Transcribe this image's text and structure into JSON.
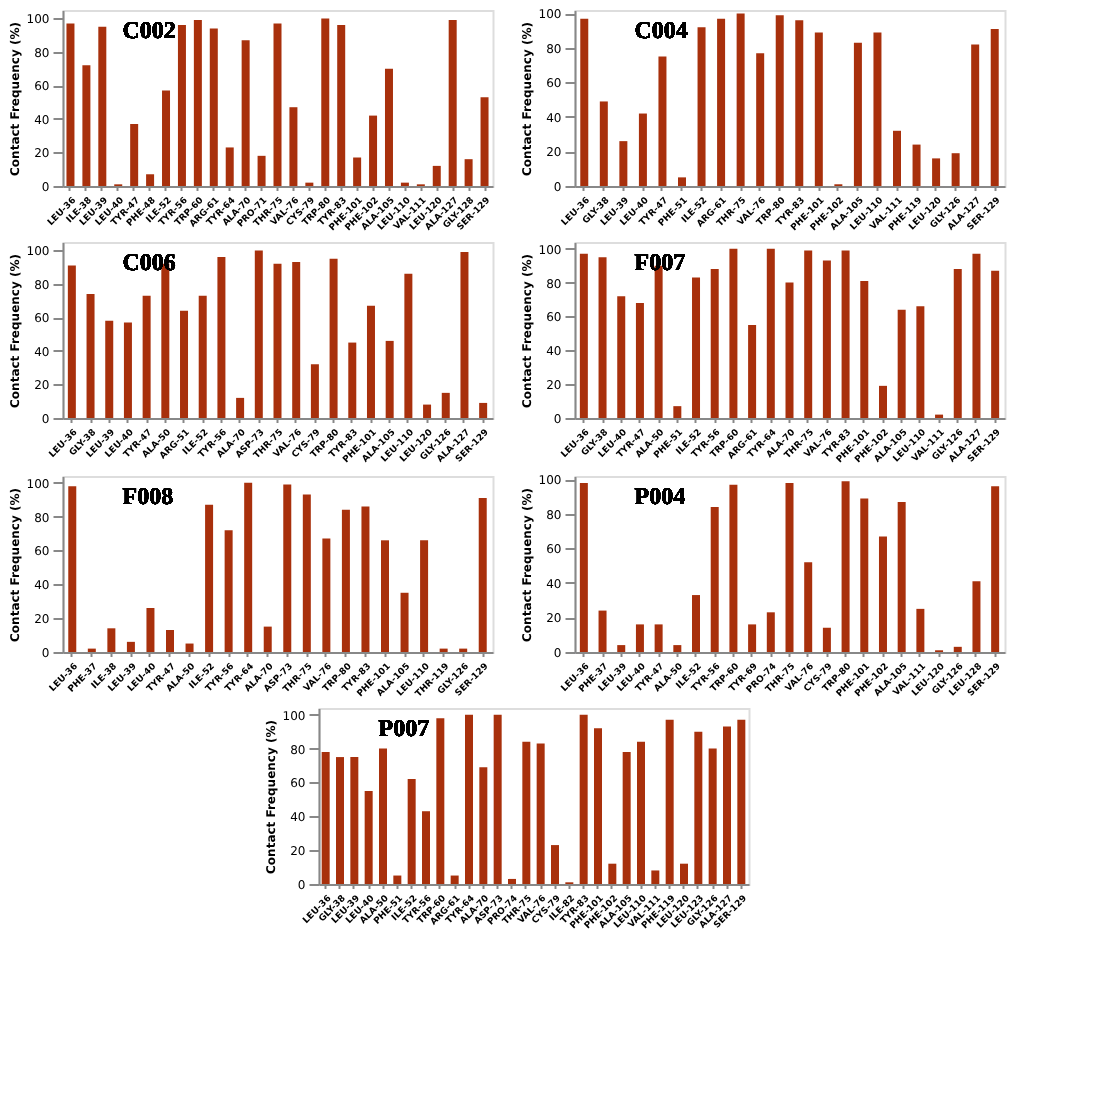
{
  "chart_data": [
    {
      "type": "bar",
      "title": "C002",
      "ylabel": "Contact Frequency (%)",
      "ylim": [
        0,
        105
      ],
      "yticks": [
        0,
        20,
        40,
        60,
        80,
        100
      ],
      "grid": false,
      "color": "#a8300c",
      "categories": [
        "LEU-36",
        "ILE-38",
        "LEU-39",
        "LEU-40",
        "TYR-47",
        "PHE-48",
        "ILE-52",
        "TYR-56",
        "TRP-60",
        "ARG-61",
        "TYR-64",
        "ALA-70",
        "PRO-71",
        "THR-75",
        "VAL-76",
        "CYS-79",
        "TRP-80",
        "TYR-83",
        "PHE-101",
        "PHE-102",
        "ALA-105",
        "LEU-110",
        "VAL-111",
        "LEU-120",
        "ALA-127",
        "GLY-128",
        "SER-129"
      ],
      "values": [
        97,
        72,
        95,
        1,
        37,
        7,
        57,
        96,
        99,
        94,
        23,
        87,
        18,
        97,
        47,
        2,
        100,
        96,
        17,
        42,
        70,
        2,
        1,
        12,
        99,
        16,
        53
      ]
    },
    {
      "type": "bar",
      "title": "C004",
      "ylabel": "Contact Frequency (%)",
      "ylim": [
        0,
        102
      ],
      "yticks": [
        0,
        20,
        40,
        60,
        80,
        100
      ],
      "grid": false,
      "color": "#a8300c",
      "categories": [
        "LEU-36",
        "GLY-38",
        "LEU-39",
        "LEU-40",
        "TYR-47",
        "PHE-51",
        "ILE-52",
        "ARG-61",
        "THR-75",
        "VAL-76",
        "TRP-80",
        "TYR-83",
        "PHE-101",
        "PHE-102",
        "ALA-105",
        "LEU-110",
        "VAL-111",
        "PHE-119",
        "LEU-120",
        "GLY-126",
        "ALA-127",
        "SER-129"
      ],
      "values": [
        97,
        49,
        26,
        42,
        75,
        5,
        92,
        97,
        100,
        77,
        99,
        96,
        89,
        1,
        83,
        89,
        32,
        24,
        16,
        19,
        82,
        91
      ]
    },
    {
      "type": "bar",
      "title": "C006",
      "ylabel": "Contact Frequency (%)",
      "ylim": [
        0,
        105
      ],
      "yticks": [
        0,
        20,
        40,
        60,
        80,
        100
      ],
      "grid": false,
      "color": "#a8300c",
      "categories": [
        "LEU-36",
        "GLY-38",
        "LEU-39",
        "LEU-40",
        "TYR-47",
        "ALA-50",
        "ARG-51",
        "ILE-52",
        "TYR-56",
        "ALA-70",
        "ASP-73",
        "THR-75",
        "VAL-76",
        "CYS-79",
        "TRP-80",
        "TYR-83",
        "PHE-101",
        "ALA-105",
        "LEU-110",
        "LEU-120",
        "GLY-126",
        "ALA-127",
        "SER-129"
      ],
      "values": [
        91,
        74,
        58,
        57,
        73,
        92,
        64,
        73,
        96,
        12,
        100,
        92,
        93,
        32,
        95,
        45,
        67,
        46,
        86,
        8,
        15,
        99,
        9
      ]
    },
    {
      "type": "bar",
      "title": "F007",
      "ylabel": "Contact Frequency (%)",
      "ylim": [
        0,
        104
      ],
      "yticks": [
        0,
        20,
        40,
        60,
        80,
        100
      ],
      "grid": false,
      "color": "#a8300c",
      "categories": [
        "LEU-36",
        "GLY-38",
        "LEU-40",
        "TYR-47",
        "ALA-50",
        "PHE-51",
        "ILE-52",
        "TYR-56",
        "TRP-60",
        "ARG-61",
        "TYR-64",
        "ALA-70",
        "THR-75",
        "VAL-76",
        "TYR-83",
        "PHE-101",
        "PHE-102",
        "ALA-105",
        "LEU-110",
        "VAL-111",
        "GLY-126",
        "ALA-127",
        "SER-129"
      ],
      "values": [
        97,
        95,
        72,
        68,
        90,
        7,
        83,
        88,
        100,
        55,
        100,
        80,
        99,
        93,
        99,
        81,
        19,
        64,
        66,
        2,
        88,
        97,
        87
      ]
    },
    {
      "type": "bar",
      "title": "F008",
      "ylabel": "Contact Frequency (%)",
      "ylim": [
        0,
        104
      ],
      "yticks": [
        0,
        20,
        40,
        60,
        80,
        100
      ],
      "grid": false,
      "color": "#a8300c",
      "categories": [
        "LEU-36",
        "PHE-37",
        "ILE-38",
        "LEU-39",
        "LEU-40",
        "TYR-47",
        "ALA-50",
        "ILE-52",
        "TYR-56",
        "TYR-64",
        "ALA-70",
        "ASP-73",
        "THR-75",
        "VAL-76",
        "TRP-80",
        "TYR-83",
        "PHE-101",
        "ALA-105",
        "LEU-110",
        "THR-119",
        "GLY-126",
        "SER-129"
      ],
      "values": [
        98,
        2,
        14,
        6,
        26,
        13,
        5,
        87,
        72,
        100,
        15,
        99,
        93,
        67,
        84,
        86,
        66,
        35,
        66,
        2,
        2,
        91
      ]
    },
    {
      "type": "bar",
      "title": "P004",
      "ylabel": "Contact Frequency (%)",
      "ylim": [
        0,
        102
      ],
      "yticks": [
        0,
        20,
        40,
        60,
        80,
        100
      ],
      "grid": false,
      "color": "#a8300c",
      "categories": [
        "LEU-36",
        "PHE-37",
        "LEU-39",
        "LEU-40",
        "TYR-47",
        "ALA-50",
        "ILE-52",
        "TYR-56",
        "TRP-60",
        "TYR-69",
        "PRO-74",
        "THR-75",
        "VAL-76",
        "CYS-79",
        "TRP-80",
        "PHE-101",
        "PHE-102",
        "ALA-105",
        "VAL-111",
        "LEU-120",
        "GLY-126",
        "LEU-128",
        "SER-129"
      ],
      "values": [
        98,
        24,
        4,
        16,
        16,
        4,
        33,
        84,
        97,
        16,
        23,
        98,
        52,
        14,
        99,
        89,
        67,
        87,
        25,
        1,
        3,
        41,
        96
      ]
    },
    {
      "type": "bar",
      "title": "P007",
      "ylabel": "Contact Frequency (%)",
      "ylim": [
        0,
        104
      ],
      "yticks": [
        0,
        20,
        40,
        60,
        80,
        100
      ],
      "grid": false,
      "color": "#a8300c",
      "categories": [
        "LEU-36",
        "GLY-38",
        "LEU-39",
        "LEU-40",
        "ALA-50",
        "PHE-51",
        "ILE-52",
        "TYR-56",
        "TRP-60",
        "ARG-61",
        "TYR-64",
        "ALA-70",
        "ASP-73",
        "PRO-74",
        "THR-75",
        "VAL-76",
        "CYS-79",
        "ILE-82",
        "TYR-83",
        "PHE-101",
        "PHE-102",
        "ALA-105",
        "LEU-110",
        "VAL-111",
        "PHE-119",
        "LEU-120",
        "LEU-123",
        "GLY-126",
        "ALA-127",
        "SER-129"
      ],
      "values": [
        78,
        75,
        75,
        55,
        80,
        5,
        62,
        43,
        98,
        5,
        100,
        69,
        100,
        3,
        84,
        83,
        23,
        1,
        100,
        92,
        12,
        78,
        84,
        8,
        97,
        12,
        90,
        80,
        93,
        97
      ]
    }
  ]
}
